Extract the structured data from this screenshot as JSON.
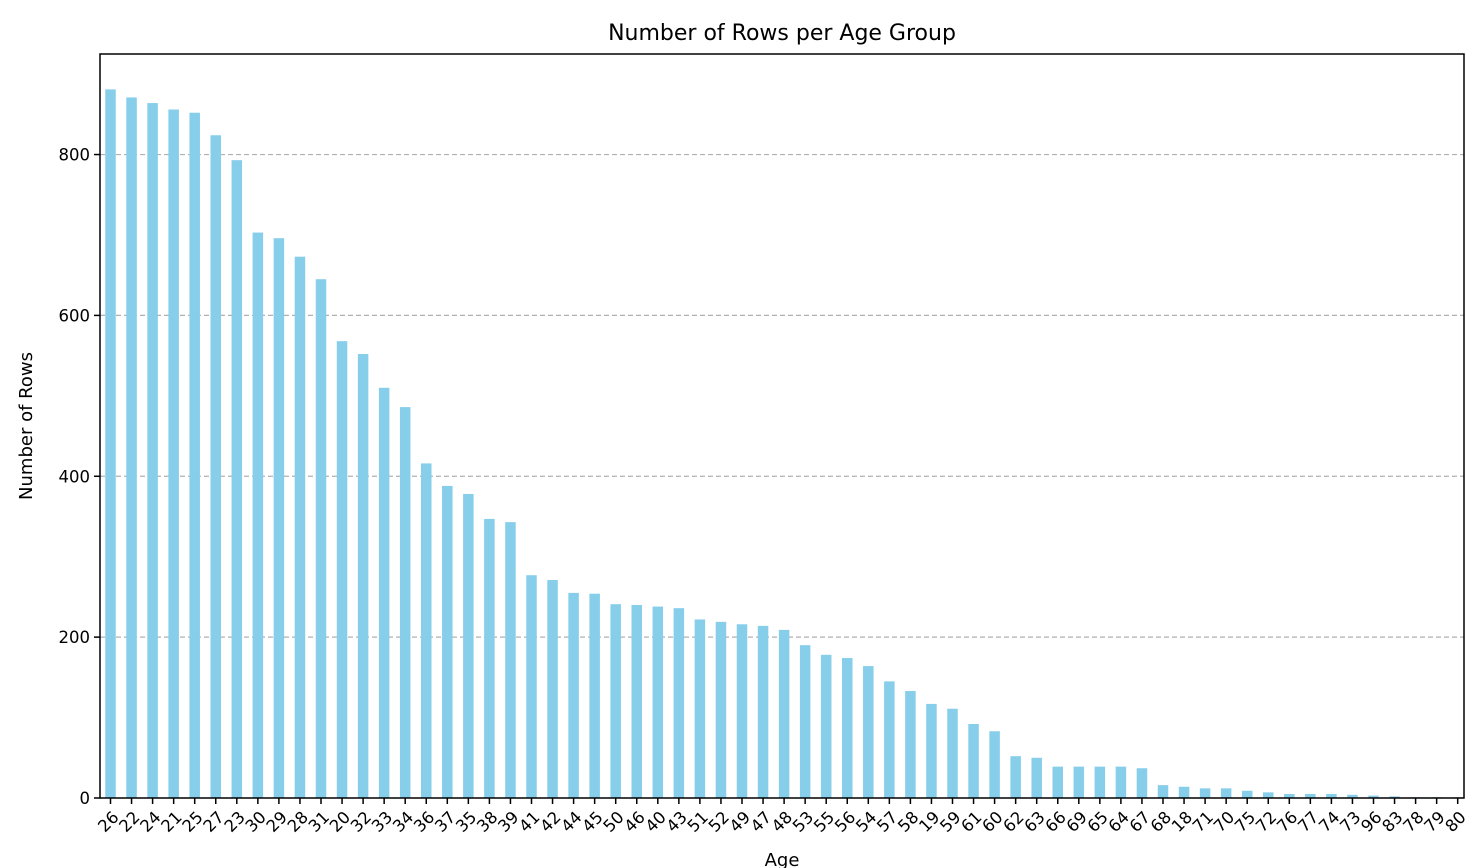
{
  "chart_data": {
    "type": "bar",
    "title": "Number of Rows per Age Group",
    "xlabel": "Age",
    "ylabel": "Number of Rows",
    "ylim": [
      0,
      925
    ],
    "yticks": [
      0,
      200,
      400,
      600,
      800
    ],
    "grid": "y-dashed",
    "bar_color": "#87ceeb",
    "categories": [
      "26",
      "22",
      "24",
      "21",
      "25",
      "27",
      "23",
      "30",
      "29",
      "28",
      "31",
      "20",
      "32",
      "33",
      "34",
      "36",
      "37",
      "35",
      "38",
      "39",
      "41",
      "42",
      "44",
      "45",
      "50",
      "46",
      "40",
      "43",
      "51",
      "52",
      "49",
      "47",
      "48",
      "53",
      "55",
      "56",
      "54",
      "57",
      "58",
      "19",
      "59",
      "61",
      "60",
      "62",
      "63",
      "66",
      "69",
      "65",
      "64",
      "67",
      "68",
      "18",
      "71",
      "70",
      "75",
      "72",
      "76",
      "77",
      "74",
      "73",
      "96",
      "83",
      "78",
      "79",
      "80"
    ],
    "values": [
      881,
      871,
      864,
      856,
      852,
      824,
      793,
      703,
      696,
      673,
      645,
      568,
      552,
      510,
      486,
      416,
      388,
      378,
      347,
      343,
      277,
      271,
      255,
      254,
      241,
      240,
      238,
      236,
      222,
      219,
      216,
      214,
      209,
      190,
      178,
      174,
      164,
      145,
      133,
      117,
      111,
      92,
      83,
      52,
      50,
      39,
      39,
      39,
      39,
      37,
      16,
      14,
      12,
      12,
      9,
      7,
      5,
      5,
      5,
      4,
      3,
      2,
      1,
      1,
      1
    ]
  }
}
